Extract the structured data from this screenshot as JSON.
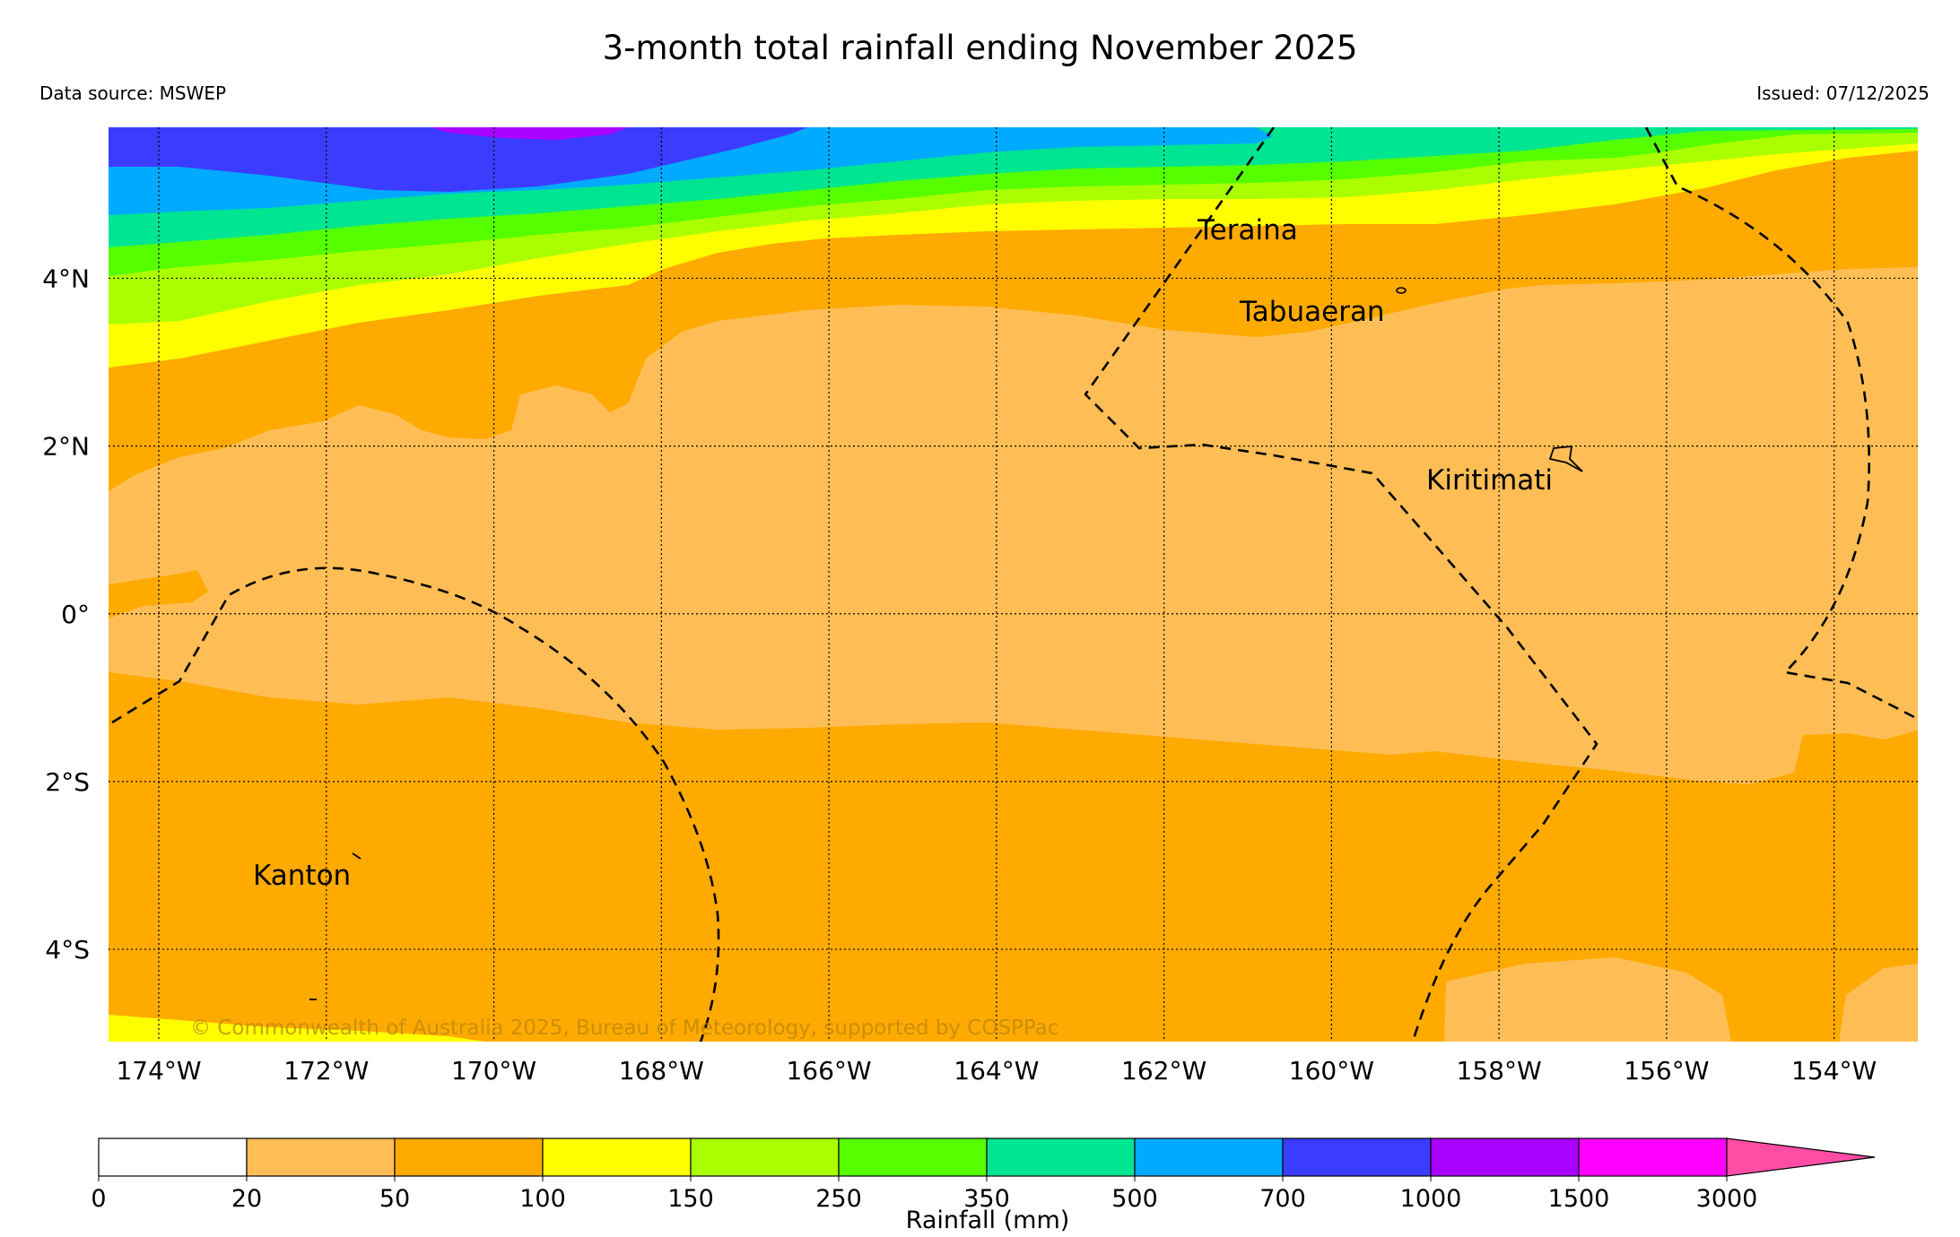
{
  "header": {
    "title": "3-month total rainfall ending November 2025",
    "source": "Data source: MSWEP",
    "issued": "Issued: 07/12/2025"
  },
  "map": {
    "lon_range": [
      -174.6,
      -153.0
    ],
    "lat_range": [
      -5.1,
      5.8
    ],
    "lon_ticks": [
      "174°W",
      "172°W",
      "170°W",
      "168°W",
      "166°W",
      "164°W",
      "162°W",
      "160°W",
      "158°W",
      "156°W",
      "154°W"
    ],
    "lat_ticks": [
      "4°N",
      "2°N",
      "0°",
      "2°S",
      "4°S"
    ],
    "places": {
      "teraina": "Teraina",
      "tabuaeran": "Tabuaeran",
      "kiritimati": "Kiritimati",
      "kanton": "Kanton"
    },
    "copyright": "© Commonwealth of Australia 2025, Bureau of Meteorology, supported by COSPPac"
  },
  "legend": {
    "label": "Rainfall (mm)",
    "bounds": [
      "0",
      "20",
      "50",
      "100",
      "150",
      "250",
      "350",
      "500",
      "700",
      "1000",
      "1500",
      "3000"
    ],
    "colors": [
      "#ffffff",
      "#ffbe55",
      "#ffaa00",
      "#ffff00",
      "#aaff00",
      "#55ff00",
      "#00e591",
      "#00aaff",
      "#3c3cff",
      "#aa00ff",
      "#ff00ff",
      "#ff4da6"
    ]
  }
}
